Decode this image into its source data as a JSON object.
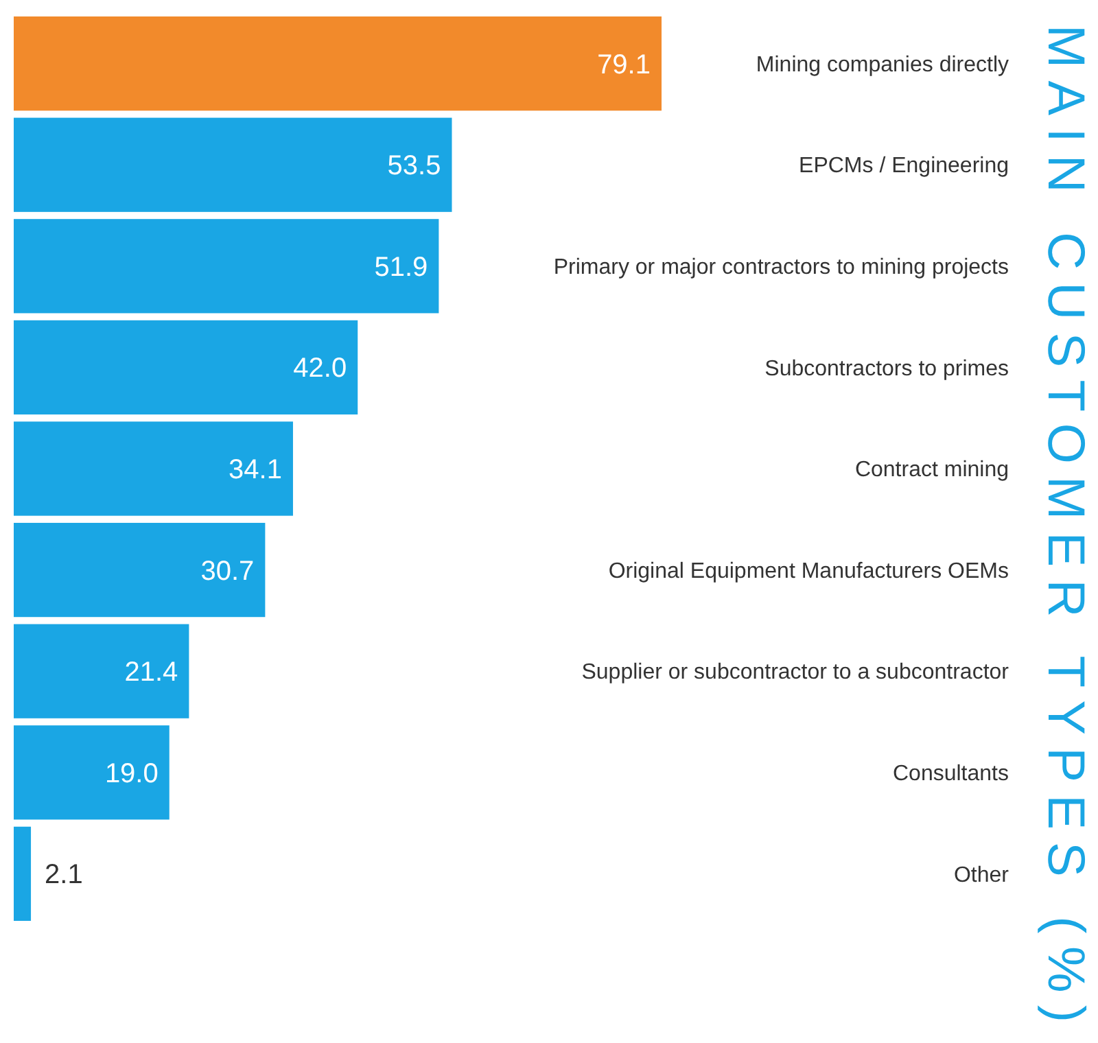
{
  "chart_data": {
    "type": "bar",
    "orientation": "horizontal",
    "title": "MAIN CUSTOMER TYPES (%)",
    "categories": [
      "Mining companies directly",
      "EPCMs / Engineering",
      "Primary or major contractors to mining projects",
      "Subcontractors to primes",
      "Contract mining",
      "Original Equipment Manufacturers OEMs",
      "Supplier or subcontractor to a subcontractor",
      "Consultants",
      "Other"
    ],
    "values": [
      79.1,
      53.5,
      51.9,
      42.0,
      34.1,
      30.7,
      21.4,
      19.0,
      2.1
    ],
    "value_labels": [
      "79.1",
      "53.5",
      "51.9",
      "42.0",
      "34.1",
      "30.7",
      "21.4",
      "19.0",
      "2.1"
    ],
    "colors": [
      "#f28a2b",
      "#1aa6e4",
      "#1aa6e4",
      "#1aa6e4",
      "#1aa6e4",
      "#1aa6e4",
      "#1aa6e4",
      "#1aa6e4",
      "#1aa6e4"
    ],
    "xlim": [
      0,
      79.1
    ]
  }
}
